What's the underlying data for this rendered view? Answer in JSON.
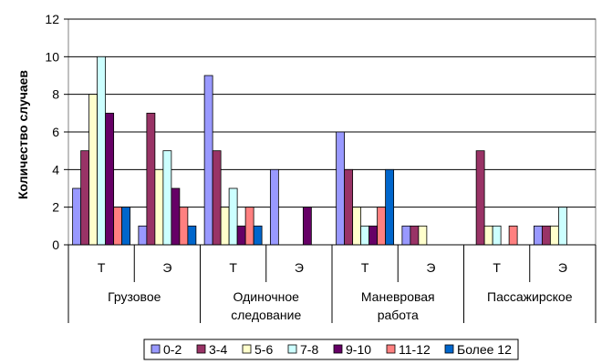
{
  "chart_data": {
    "type": "bar",
    "ylabel": "Количество случаев",
    "ylim": [
      0,
      12
    ],
    "yticks": [
      0,
      2,
      4,
      6,
      8,
      10,
      12
    ],
    "grid": true,
    "legend_position": "bottom",
    "groups": [
      "Грузовое",
      "Одиночное следование",
      "Маневровая работа",
      "Пассажирское"
    ],
    "group_lines": [
      [
        "Грузовое"
      ],
      [
        "Одиночное",
        "следование"
      ],
      [
        "Маневровая",
        "работа"
      ],
      [
        "Пассажирское"
      ]
    ],
    "subcategories": [
      "Т",
      "Э",
      "Т",
      "Э",
      "Т",
      "Э",
      "Т",
      "Э"
    ],
    "series": [
      {
        "name": "0-2",
        "color": "#9999FF",
        "values": [
          3,
          1,
          9,
          4,
          6,
          1,
          0,
          1
        ]
      },
      {
        "name": "3-4",
        "color": "#993366",
        "values": [
          5,
          7,
          5,
          0,
          4,
          1,
          5,
          1
        ]
      },
      {
        "name": "5-6",
        "color": "#FFFFCC",
        "values": [
          8,
          4,
          2,
          0,
          2,
          1,
          1,
          1
        ]
      },
      {
        "name": "7-8",
        "color": "#CCFFFF",
        "values": [
          10,
          5,
          3,
          0,
          1,
          0,
          1,
          2
        ]
      },
      {
        "name": "9-10",
        "color": "#660066",
        "values": [
          7,
          3,
          1,
          2,
          1,
          0,
          0,
          0
        ]
      },
      {
        "name": "11-12",
        "color": "#FF8080",
        "values": [
          2,
          2,
          2,
          0,
          2,
          0,
          1,
          0
        ]
      },
      {
        "name": "Более 12",
        "color": "#0066CC",
        "values": [
          2,
          1,
          1,
          0,
          4,
          0,
          0,
          0
        ]
      }
    ]
  }
}
